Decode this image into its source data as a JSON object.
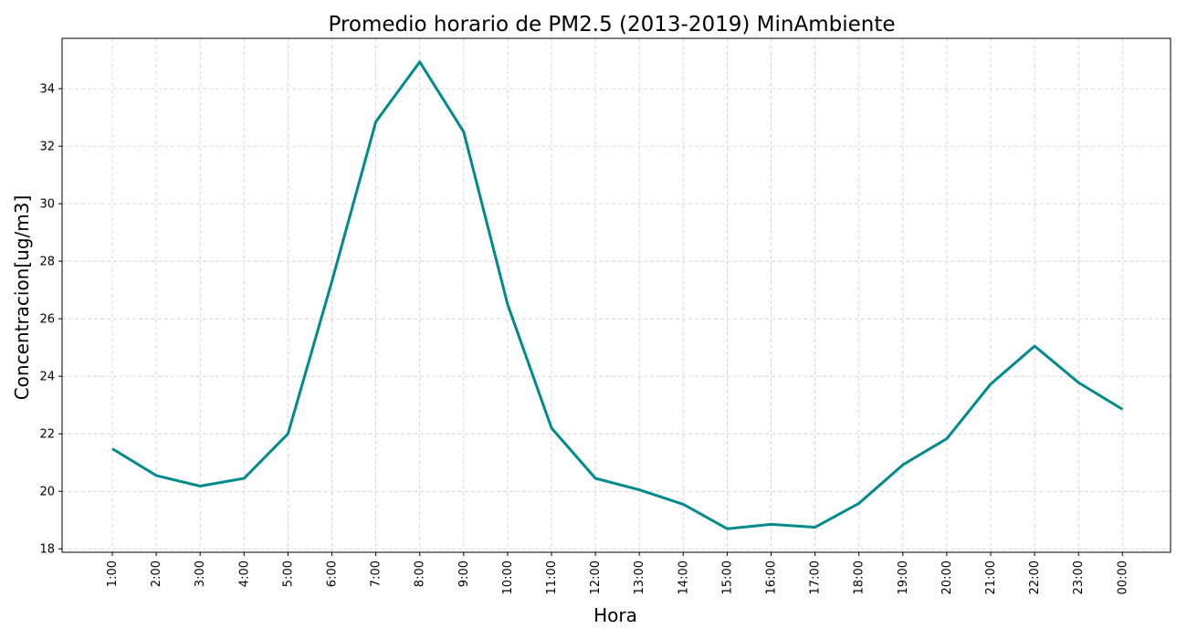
{
  "chart_data": {
    "type": "line",
    "title": "Promedio horario de PM2.5 (2013-2019) MinAmbiente",
    "xlabel": "Hora",
    "ylabel": "Concentracion[ug/m3]",
    "categories": [
      "1:00",
      "2:00",
      "3:00",
      "4:00",
      "5:00",
      "6:00",
      "7:00",
      "8:00",
      "9:00",
      "10:00",
      "11:00",
      "12:00",
      "13:00",
      "14:00",
      "15:00",
      "16:00",
      "17:00",
      "18:00",
      "19:00",
      "20:00",
      "21:00",
      "22:00",
      "23:00",
      "00:00"
    ],
    "series": [
      {
        "values": [
          21.48,
          20.55,
          20.18,
          20.45,
          22.0,
          27.3,
          32.85,
          34.93,
          32.5,
          26.5,
          22.2,
          20.45,
          20.05,
          19.55,
          18.7,
          18.85,
          18.75,
          19.58,
          20.92,
          21.83,
          23.73,
          25.05,
          23.78,
          22.85
        ],
        "color": "#008b8b"
      }
    ],
    "yticks": [
      18,
      20,
      22,
      24,
      26,
      28,
      30,
      32,
      34
    ],
    "ylim": [
      17.88,
      35.75
    ],
    "grid": true
  }
}
